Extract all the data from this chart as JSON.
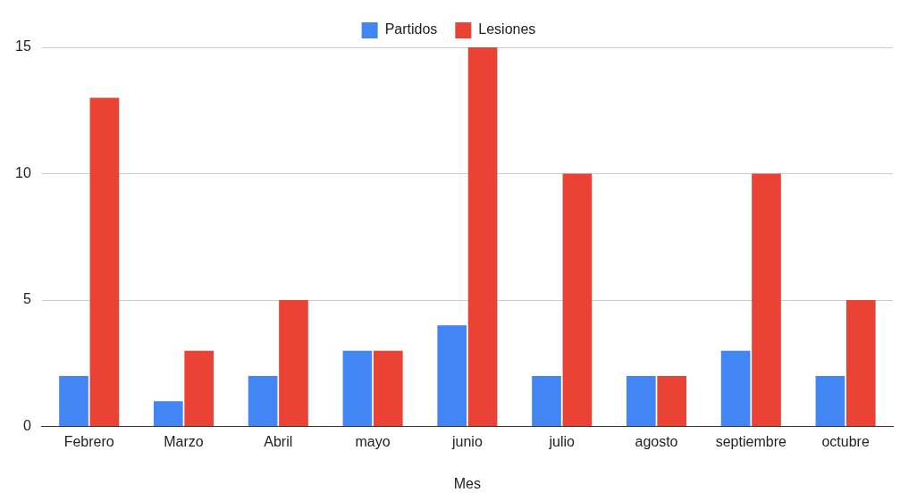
{
  "chart_data": {
    "type": "bar",
    "xlabel": "Mes",
    "categories": [
      "Febrero",
      "Marzo",
      "Abril",
      "mayo",
      "junio",
      "julio",
      "agosto",
      "septiembre",
      "octubre"
    ],
    "series": [
      {
        "name": "Partidos",
        "color": "#4285f4",
        "values": [
          2,
          1,
          2,
          3,
          4,
          2,
          2,
          3,
          2
        ]
      },
      {
        "name": "Lesiones",
        "color": "#ea4335",
        "values": [
          13,
          3,
          5,
          3,
          15,
          10,
          2,
          10,
          5
        ]
      }
    ],
    "ylim": [
      0,
      15
    ],
    "yticks": [
      0,
      5,
      10,
      15
    ],
    "grid": "y",
    "legend": "top"
  }
}
